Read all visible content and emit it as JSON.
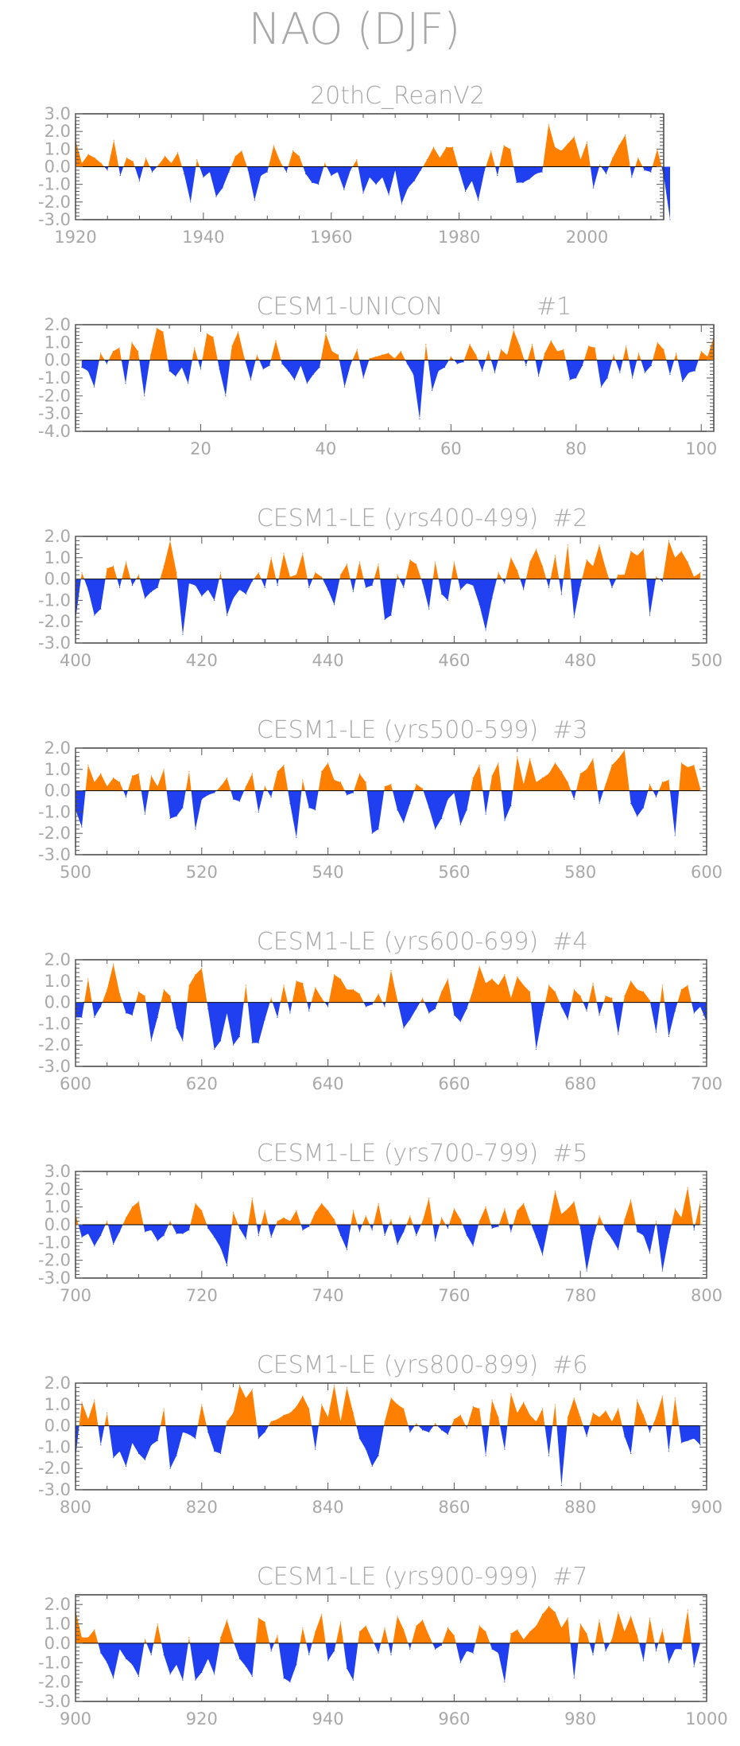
{
  "figure": {
    "title": "NAO (DJF)",
    "colors": {
      "positive": "#ff7f00",
      "negative": "#1f3ff0",
      "text": "#a8a8a8",
      "frame": "#333333"
    }
  },
  "chart_data": [
    {
      "type": "area",
      "title": "20thC_ReanV2",
      "tag": "",
      "x_start": 1920,
      "xlim": [
        1920,
        2012
      ],
      "ylim": [
        -3.0,
        3.0
      ],
      "xticks": [
        1920,
        1940,
        1960,
        1980,
        2000
      ],
      "yticks": [
        "3.0",
        "2.0",
        "1.0",
        "0.0",
        "-1.0",
        "-2.0",
        "-3.0"
      ],
      "yticks_values": [
        3,
        2,
        1,
        0,
        -1,
        -2,
        -3
      ],
      "values": [
        1.5,
        0.2,
        0.7,
        0.5,
        0.2,
        -0.2,
        1.5,
        -0.5,
        0.5,
        0.3,
        -0.8,
        0.5,
        -0.3,
        0.1,
        0.6,
        0.2,
        0.8,
        -0.4,
        -2.0,
        0.4,
        -0.6,
        -0.3,
        -1.7,
        -1.2,
        -0.3,
        0.6,
        0.9,
        -0.2,
        -1.9,
        -0.5,
        -0.3,
        1.2,
        0.3,
        -0.3,
        0.9,
        0.6,
        -0.4,
        -0.9,
        -1.0,
        0.2,
        -0.5,
        -0.3,
        -1.3,
        -0.2,
        0.4,
        -1.5,
        -0.6,
        -1.0,
        -0.6,
        -1.6,
        -0.2,
        -2.1,
        -1.2,
        -0.8,
        -0.2,
        0.4,
        1.1,
        0.5,
        1.1,
        1.1,
        -0.2,
        -1.4,
        -0.8,
        -1.9,
        -0.2,
        0.9,
        -0.5,
        1.2,
        1.0,
        -0.9,
        -0.9,
        -0.7,
        -0.4,
        -0.3,
        2.4,
        1.1,
        0.9,
        1.3,
        1.7,
        0.4,
        1.4,
        -1.2,
        0.1,
        -0.4,
        0.5,
        1.2,
        1.8,
        -0.6,
        0.5,
        -0.2,
        -0.3,
        1.0,
        -0.5,
        -3.0
      ]
    },
    {
      "type": "area",
      "title": "CESM1-UNICON",
      "tag": "#1",
      "x_start": 1,
      "xlim": [
        0,
        102
      ],
      "ylim": [
        -4.0,
        2.0
      ],
      "xticks": [
        20,
        40,
        60,
        80,
        100
      ],
      "yticks": [
        "2.0",
        "1.0",
        "0.0",
        "-1.0",
        "-2.0",
        "-3.0",
        "-4.0"
      ],
      "yticks_values": [
        2,
        1,
        0,
        -1,
        -2,
        -3,
        -4
      ],
      "values": [
        -0.4,
        -0.6,
        -1.5,
        0.4,
        -0.2,
        0.5,
        0.7,
        -1.3,
        1.0,
        0.5,
        -2.0,
        0.3,
        1.8,
        1.6,
        -0.6,
        -0.9,
        -0.4,
        -1.3,
        0.7,
        -0.5,
        1.5,
        1.3,
        -0.5,
        -2.0,
        0.8,
        1.6,
        0.1,
        -1.1,
        0.3,
        -0.5,
        -0.3,
        1.1,
        -0.2,
        -0.6,
        -1.1,
        -0.3,
        -1.3,
        -0.8,
        -0.4,
        1.5,
        0.5,
        0.3,
        -1.5,
        -0.2,
        0.6,
        -1.0,
        0.1,
        0.2,
        0.3,
        0.4,
        0.1,
        0.5,
        -0.2,
        -0.8,
        -3.3,
        0.9,
        -1.7,
        -0.6,
        -0.4,
        0.2,
        -0.2,
        -0.1,
        0.9,
        0.3,
        -0.6,
        0.5,
        -0.7,
        0.6,
        0.3,
        1.7,
        0.8,
        -0.3,
        0.9,
        -0.9,
        0.4,
        1.1,
        0.5,
        0.6,
        -1.1,
        -1.0,
        -0.3,
        0.8,
        0.7,
        -1.5,
        -1.0,
        0.3,
        -0.7,
        0.8,
        -1.0,
        0.4,
        -0.7,
        -0.3,
        1.0,
        0.6,
        -0.8,
        0.4,
        -1.2,
        -0.7,
        -0.6,
        0.5,
        0.2,
        1.3
      ]
    },
    {
      "type": "area",
      "title": "CESM1-LE (yrs400-499)",
      "tag": "#2",
      "x_start": 400,
      "xlim": [
        400,
        500
      ],
      "ylim": [
        -3.0,
        2.0
      ],
      "xticks": [
        400,
        420,
        440,
        460,
        480,
        500
      ],
      "yticks": [
        "2.0",
        "1.0",
        "0.0",
        "-1.0",
        "-2.0",
        "-3.0"
      ],
      "yticks_values": [
        2,
        1,
        0,
        -1,
        -2,
        -3
      ],
      "values": [
        -1.9,
        0.3,
        -0.5,
        -1.7,
        -1.4,
        0.5,
        0.6,
        -0.4,
        0.8,
        -0.3,
        0.2,
        -0.9,
        -0.6,
        -0.4,
        0.6,
        1.8,
        0.3,
        -2.6,
        -0.2,
        -0.3,
        -0.8,
        -0.5,
        -1.0,
        0.3,
        -1.7,
        -0.9,
        -0.5,
        -0.7,
        -0.1,
        0.3,
        -0.4,
        1.0,
        -0.3,
        1.2,
        0.1,
        0.2,
        1.2,
        -0.4,
        0.3,
        0.1,
        -0.5,
        -1.2,
        0.2,
        0.7,
        -0.6,
        0.8,
        -0.4,
        -0.3,
        0.7,
        -1.9,
        -1.7,
        0.2,
        -0.4,
        0.9,
        0.7,
        -0.2,
        -1.4,
        0.8,
        -0.7,
        -1.0,
        0.8,
        -0.5,
        -0.2,
        -0.3,
        -1.2,
        -2.4,
        -0.9,
        0.3,
        -0.2,
        1.0,
        0.4,
        -0.5,
        0.8,
        1.4,
        0.6,
        -0.4,
        1.1,
        -0.7,
        1.6,
        -1.8,
        -0.3,
        0.9,
        0.6,
        1.6,
        0.5,
        -0.4,
        0.2,
        0.2,
        1.3,
        1.1,
        1.4,
        -1.7,
        0.1,
        -0.1,
        1.8,
        1.0,
        1.3,
        0.8,
        0.1,
        0.3
      ]
    },
    {
      "type": "area",
      "title": "CESM1-LE (yrs500-599)",
      "tag": "#3",
      "x_start": 500,
      "xlim": [
        500,
        600
      ],
      "ylim": [
        -3.0,
        2.0
      ],
      "xticks": [
        500,
        520,
        540,
        560,
        580,
        600
      ],
      "yticks": [
        "2.0",
        "1.0",
        "0.0",
        "-1.0",
        "-2.0",
        "-3.0"
      ],
      "yticks_values": [
        2,
        1,
        0,
        -1,
        -2,
        -3
      ],
      "values": [
        -0.9,
        -1.7,
        1.2,
        0.4,
        0.8,
        0.2,
        0.6,
        0.4,
        -0.3,
        0.7,
        0.8,
        -1.1,
        0.7,
        0.2,
        1.0,
        -1.3,
        -1.2,
        -0.8,
        0.9,
        -1.8,
        -0.4,
        -0.2,
        -0.1,
        0.2,
        0.6,
        -0.4,
        -0.5,
        0.2,
        0.8,
        -1.0,
        0.2,
        -0.3,
        0.9,
        1.2,
        -0.6,
        -2.2,
        0.5,
        -0.8,
        -0.9,
        0.9,
        1.3,
        0.5,
        0.4,
        -0.2,
        -0.1,
        0.8,
        0.4,
        -2.0,
        -1.8,
        0.2,
        0.3,
        -0.9,
        -1.5,
        -0.6,
        0.3,
        0.1,
        -0.8,
        -1.8,
        -1.3,
        -0.4,
        -0.1,
        -1.6,
        -0.9,
        0.6,
        1.2,
        -1.1,
        0.7,
        1.3,
        -1.4,
        -0.7,
        1.6,
        0.3,
        1.5,
        0.4,
        0.6,
        0.8,
        1.3,
        0.9,
        0.4,
        -0.4,
        0.8,
        1.0,
        1.5,
        -0.6,
        0.3,
        1.2,
        1.5,
        1.9,
        -0.6,
        -1.2,
        -0.8,
        0.3,
        -0.3,
        0.4,
        0.5,
        -2.1,
        1.3,
        1.1,
        1.2,
        0.1
      ]
    },
    {
      "type": "area",
      "title": "CESM1-LE (yrs600-699)",
      "tag": "#4",
      "x_start": 600,
      "xlim": [
        600,
        700
      ],
      "ylim": [
        -3.0,
        2.0
      ],
      "xticks": [
        600,
        620,
        640,
        660,
        680,
        700
      ],
      "yticks": [
        "2.0",
        "1.0",
        "0.0",
        "-1.0",
        "-2.0",
        "-3.0"
      ],
      "yticks_values": [
        2,
        1,
        0,
        -1,
        -2,
        -3
      ],
      "values": [
        -0.7,
        -0.7,
        1.1,
        -0.7,
        -0.2,
        0.6,
        1.8,
        0.4,
        -0.5,
        -0.6,
        0.5,
        0.3,
        -1.8,
        -0.7,
        0.6,
        0.3,
        -1.2,
        -1.8,
        0.8,
        1.3,
        1.6,
        -0.3,
        -2.2,
        -1.8,
        -0.5,
        -2.0,
        -1.6,
        0.8,
        -1.9,
        -1.9,
        -0.8,
        0.2,
        -0.7,
        0.8,
        -0.5,
        1.0,
        0.9,
        -0.4,
        0.7,
        0.2,
        -0.2,
        1.3,
        1.1,
        0.6,
        0.6,
        0.4,
        -0.2,
        -0.1,
        0.4,
        -0.2,
        1.5,
        0.1,
        -1.2,
        -0.8,
        -0.3,
        0.2,
        -0.5,
        -0.3,
        0.5,
        1.1,
        -0.6,
        -0.9,
        -0.3,
        0.6,
        1.7,
        0.9,
        1.1,
        0.8,
        1.3,
        0.2,
        1.2,
        0.8,
        0.5,
        -2.2,
        -0.6,
        0.8,
        0.5,
        -0.2,
        -0.8,
        0.6,
        0.3,
        -0.4,
        0.9,
        -0.6,
        0.3,
        0.2,
        -1.5,
        0.3,
        1.0,
        0.6,
        0.5,
        0.1,
        -1.4,
        0.8,
        -1.6,
        -0.4,
        0.6,
        0.8,
        -0.5,
        -0.2,
        -0.9
      ]
    },
    {
      "type": "area",
      "title": "CESM1-LE (yrs700-799)",
      "tag": "#5",
      "x_start": 700,
      "xlim": [
        700,
        800
      ],
      "ylim": [
        -3.0,
        3.0
      ],
      "xticks": [
        700,
        720,
        740,
        760,
        780,
        800
      ],
      "yticks": [
        "3.0",
        "2.0",
        "1.0",
        "0.0",
        "-1.0",
        "-2.0",
        "-3.0"
      ],
      "yticks_values": [
        3,
        2,
        1,
        0,
        -1,
        -2,
        -3
      ],
      "values": [
        0.6,
        -0.7,
        -0.5,
        -1.2,
        -0.6,
        0.2,
        -1.1,
        -0.4,
        0.4,
        1.0,
        1.3,
        -0.4,
        -0.3,
        -0.9,
        -0.6,
        0.2,
        -0.5,
        -0.5,
        -0.3,
        1.2,
        0.8,
        -0.2,
        -0.7,
        -1.3,
        -2.3,
        0.7,
        -0.2,
        -0.8,
        1.5,
        -0.6,
        0.8,
        -0.7,
        0.2,
        0.4,
        0.2,
        0.8,
        -0.3,
        -0.1,
        0.7,
        1.2,
        0.8,
        0.3,
        -0.6,
        -1.4,
        0.8,
        -0.4,
        0.5,
        -0.3,
        1.2,
        -0.6,
        0.3,
        -1.1,
        -0.4,
        0.5,
        -0.6,
        0.2,
        1.5,
        -0.9,
        0.4,
        -0.2,
        0.9,
        0.3,
        -0.6,
        -1.2,
        0.2,
        1.0,
        -0.2,
        -0.1,
        0.9,
        -0.4,
        0.8,
        1.2,
        0.2,
        -0.7,
        -1.7,
        0.1,
        1.9,
        0.6,
        0.9,
        1.3,
        -0.2,
        -2.6,
        -0.8,
        0.5,
        -0.3,
        -0.8,
        -1.4,
        0.3,
        1.4,
        -0.4,
        -0.6,
        -1.6,
        0.2,
        -2.6,
        -0.7,
        0.9,
        0.4,
        2.1,
        -0.3,
        1.3
      ]
    },
    {
      "type": "area",
      "title": "CESM1-LE (yrs800-899)",
      "tag": "#6",
      "x_start": 800,
      "xlim": [
        800,
        900
      ],
      "ylim": [
        -3.0,
        2.0
      ],
      "xticks": [
        800,
        820,
        840,
        860,
        880,
        900
      ],
      "yticks": [
        "2.0",
        "1.0",
        "0.0",
        "-1.0",
        "-2.0",
        "-3.0"
      ],
      "yticks_values": [
        2,
        1,
        0,
        -1,
        -2,
        -3
      ],
      "values": [
        -1.5,
        1.1,
        0.3,
        1.2,
        -0.9,
        0.6,
        -1.5,
        -1.2,
        -1.9,
        -0.8,
        -1.3,
        -1.6,
        -0.9,
        -0.7,
        0.8,
        -2.0,
        -1.4,
        -0.3,
        -0.4,
        -0.6,
        1.0,
        -0.3,
        -1.2,
        -1.3,
        0.2,
        0.6,
        1.9,
        1.3,
        1.7,
        -0.6,
        -0.3,
        0.2,
        0.3,
        0.5,
        0.6,
        0.9,
        1.4,
        0.8,
        -1.1,
        1.0,
        0.4,
        1.9,
        0.2,
        1.8,
        0.6,
        -0.6,
        -1.1,
        -1.9,
        -1.4,
        0.2,
        1.3,
        1.0,
        0.8,
        -0.3,
        0.1,
        -0.2,
        -0.3,
        0.1,
        -0.2,
        -0.4,
        0.3,
        0.5,
        -0.1,
        0.9,
        0.8,
        -1.4,
        1.2,
        0.4,
        -1.1,
        1.5,
        0.6,
        1.1,
        0.5,
        0.2,
        0.8,
        -1.4,
        1.0,
        -2.8,
        0.4,
        1.3,
        0.4,
        -0.5,
        0.6,
        0.4,
        0.7,
        0.2,
        0.8,
        -0.5,
        -1.3,
        1.2,
        0.5,
        -0.3,
        0.4,
        1.4,
        -1.2,
        1.3,
        -0.8,
        -0.7,
        -0.6,
        -0.9
      ]
    },
    {
      "type": "area",
      "title": "CESM1-LE (yrs900-999)",
      "tag": "#7",
      "x_start": 900,
      "xlim": [
        900,
        1000
      ],
      "ylim": [
        -3.0,
        2.5
      ],
      "xticks": [
        900,
        920,
        940,
        960,
        980,
        1000
      ],
      "yticks": [
        "2.0",
        "1.0",
        "0.0",
        "-1.0",
        "-2.0",
        "-3.0"
      ],
      "yticks_values": [
        2,
        1,
        0,
        -1,
        -2,
        -3
      ],
      "values": [
        1.7,
        0.3,
        0.3,
        0.7,
        -0.5,
        -1.0,
        -1.8,
        -0.3,
        -0.8,
        -1.1,
        -1.7,
        0.2,
        -0.6,
        1.0,
        -0.6,
        -1.6,
        -1.1,
        -1.9,
        0.3,
        -1.9,
        -1.5,
        -0.8,
        -1.6,
        0.3,
        1.2,
        0.1,
        -0.8,
        -1.2,
        -1.7,
        1.3,
        1.1,
        -0.4,
        0.4,
        -1.8,
        -2.0,
        -1.1,
        0.8,
        -0.6,
        0.6,
        1.5,
        -0.9,
        -0.4,
        1.1,
        -1.3,
        -1.9,
        0.6,
        0.9,
        0.2,
        -0.5,
        0.8,
        -0.6,
        1.4,
        0.7,
        -0.3,
        0.9,
        1.2,
        0.4,
        -0.3,
        -0.1,
        0.8,
        0.4,
        -1.0,
        -0.4,
        -0.5,
        0.9,
        0.6,
        -0.3,
        -0.5,
        -2.0,
        0.5,
        0.7,
        0.2,
        0.6,
        0.9,
        1.5,
        1.9,
        1.6,
        0.8,
        1.3,
        -1.8,
        1.0,
        0.5,
        -0.6,
        1.2,
        -0.4,
        0.2,
        1.6,
        0.6,
        1.4,
        0.4,
        -0.9,
        1.3,
        -0.4,
        0.7,
        -1.0,
        -0.3,
        -0.3,
        1.7,
        -1.2,
        0.0
      ]
    }
  ]
}
